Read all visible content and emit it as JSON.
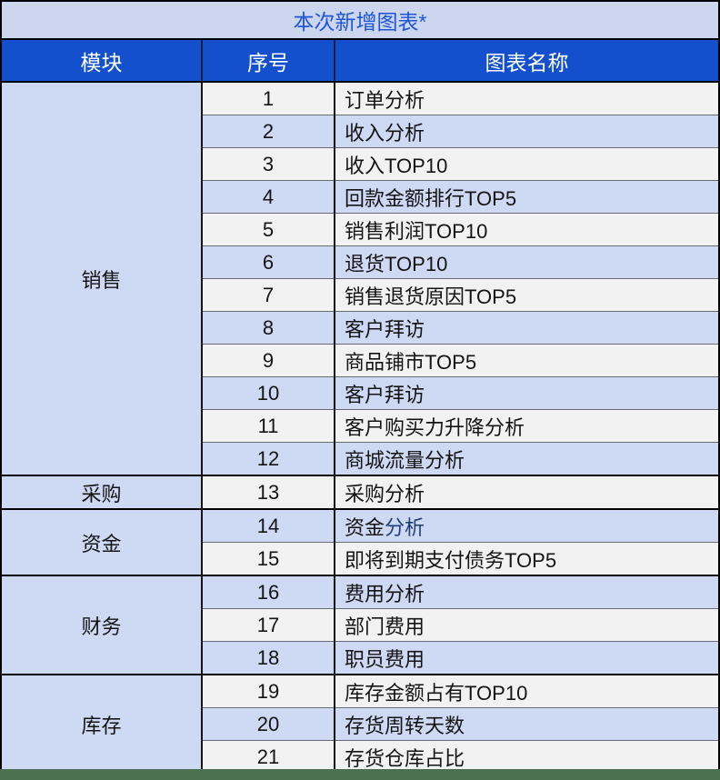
{
  "title": "本次新增图表*",
  "columns": {
    "module": "模块",
    "index": "序号",
    "name": "图表名称"
  },
  "groups": [
    {
      "module": "销售",
      "rows": [
        {
          "num": "1",
          "name": "订单分析"
        },
        {
          "num": "2",
          "name": "收入分析"
        },
        {
          "num": "3",
          "name": "收入TOP10"
        },
        {
          "num": "4",
          "name": "回款金额排行TOP5"
        },
        {
          "num": "5",
          "name": "销售利润TOP10"
        },
        {
          "num": "6",
          "name": "退货TOP10"
        },
        {
          "num": "7",
          "name": "销售退货原因TOP5"
        },
        {
          "num": "8",
          "name": "客户拜访"
        },
        {
          "num": "9",
          "name": "商品铺市TOP5"
        },
        {
          "num": "10",
          "name": "客户拜访"
        },
        {
          "num": "11",
          "name": "客户购买力升降分析"
        },
        {
          "num": "12",
          "name": "商城流量分析"
        }
      ]
    },
    {
      "module": "采购",
      "rows": [
        {
          "num": "13",
          "name": "采购分析"
        }
      ]
    },
    {
      "module": "资金",
      "rows": [
        {
          "num": "14",
          "name": "资金分析",
          "parts": [
            {
              "text": "资金",
              "style": "normal"
            },
            {
              "text": "分析",
              "style": "link"
            }
          ]
        },
        {
          "num": "15",
          "name": "即将到期支付债务TOP5"
        }
      ]
    },
    {
      "module": "财务",
      "rows": [
        {
          "num": "16",
          "name": "费用分析"
        },
        {
          "num": "17",
          "name": "部门费用"
        },
        {
          "num": "18",
          "name": "职员费用"
        }
      ]
    },
    {
      "module": "库存",
      "rows": [
        {
          "num": "19",
          "name": "库存金额占有TOP10"
        },
        {
          "num": "20",
          "name": "存货周转天数"
        },
        {
          "num": "21",
          "name": "存货仓库占比"
        }
      ]
    }
  ],
  "colors": {
    "title_bg": "#CCD6EF",
    "title_text": "#1E56D4",
    "header_bg": "#1450CE",
    "stripe_light": "#F2F2F2",
    "stripe_lavender": "#CEDAF4",
    "link_text": "#1F3E73",
    "footer_bar": "#4A7150"
  }
}
